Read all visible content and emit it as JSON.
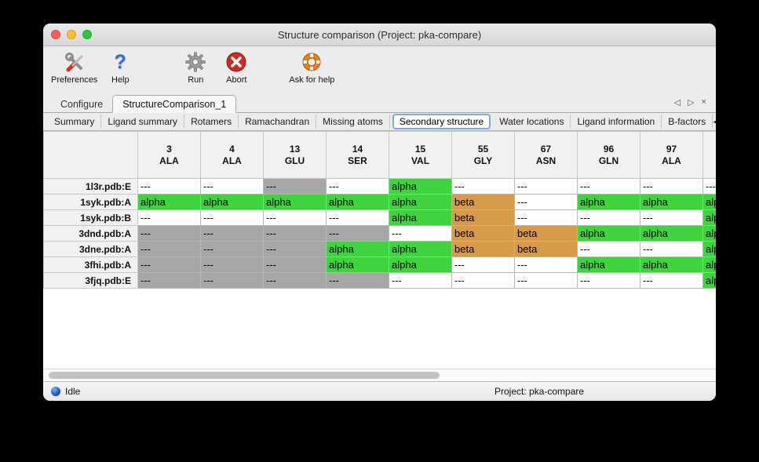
{
  "window": {
    "title": "Structure comparison (Project: pka-compare)"
  },
  "toolbar": {
    "items": [
      {
        "label": "Preferences"
      },
      {
        "label": "Help"
      },
      {
        "label": "Run"
      },
      {
        "label": "Abort"
      },
      {
        "label": "Ask for help"
      }
    ]
  },
  "tabs": {
    "doc": [
      {
        "label": "Configure",
        "active": false
      },
      {
        "label": "StructureComparison_1",
        "active": true
      }
    ],
    "view": [
      {
        "label": "Summary",
        "active": false
      },
      {
        "label": "Ligand summary",
        "active": false
      },
      {
        "label": "Rotamers",
        "active": false
      },
      {
        "label": "Ramachandran",
        "active": false
      },
      {
        "label": "Missing atoms",
        "active": false
      },
      {
        "label": "Secondary structure",
        "active": true
      },
      {
        "label": "Water locations",
        "active": false
      },
      {
        "label": "Ligand information",
        "active": false
      },
      {
        "label": "B-factors",
        "active": false
      }
    ]
  },
  "icons": {
    "doc_prev": "◁",
    "doc_next": "▷",
    "doc_close": "×",
    "view_prev": "◀",
    "view_next": "▶"
  },
  "table": {
    "columns": [
      {
        "num": "3",
        "res": "ALA"
      },
      {
        "num": "4",
        "res": "ALA"
      },
      {
        "num": "13",
        "res": "GLU"
      },
      {
        "num": "14",
        "res": "SER"
      },
      {
        "num": "15",
        "res": "VAL"
      },
      {
        "num": "55",
        "res": "GLY"
      },
      {
        "num": "67",
        "res": "ASN"
      },
      {
        "num": "96",
        "res": "GLN"
      },
      {
        "num": "97",
        "res": "ALA"
      }
    ],
    "cell_styles": {
      "plain": {
        "text": "---",
        "bg": "#ffffff"
      },
      "gap": {
        "text": "---",
        "bg": "#a7a7a7"
      },
      "alpha": {
        "text": "alpha",
        "bg": "#3fd33f"
      },
      "beta": {
        "text": "beta",
        "bg": "#d79a4a"
      }
    },
    "rows": [
      {
        "name": "1l3r.pdb:E",
        "cells": [
          "plain",
          "plain",
          "gap",
          "plain",
          "alpha",
          "plain",
          "plain",
          "plain",
          "plain"
        ],
        "overflow": "plain"
      },
      {
        "name": "1syk.pdb:A",
        "cells": [
          "alpha",
          "alpha",
          "alpha",
          "alpha",
          "alpha",
          "beta",
          "plain",
          "alpha",
          "alpha"
        ],
        "overflow": "alpha"
      },
      {
        "name": "1syk.pdb:B",
        "cells": [
          "plain",
          "plain",
          "plain",
          "plain",
          "alpha",
          "beta",
          "plain",
          "plain",
          "plain"
        ],
        "overflow": "alpha"
      },
      {
        "name": "3dnd.pdb:A",
        "cells": [
          "gap",
          "gap",
          "gap",
          "gap",
          "plain",
          "beta",
          "beta",
          "alpha",
          "alpha"
        ],
        "overflow": "alpha"
      },
      {
        "name": "3dne.pdb:A",
        "cells": [
          "gap",
          "gap",
          "gap",
          "alpha",
          "alpha",
          "beta",
          "beta",
          "plain",
          "plain"
        ],
        "overflow": "alpha"
      },
      {
        "name": "3fhi.pdb:A",
        "cells": [
          "gap",
          "gap",
          "gap",
          "alpha",
          "alpha",
          "plain",
          "plain",
          "alpha",
          "alpha"
        ],
        "overflow": "alpha"
      },
      {
        "name": "3fjq.pdb:E",
        "cells": [
          "gap",
          "gap",
          "gap",
          "gap",
          "plain",
          "plain",
          "plain",
          "plain",
          "plain"
        ],
        "overflow": "alpha"
      }
    ]
  },
  "statusbar": {
    "status": "Idle",
    "project": "Project: pka-compare"
  }
}
